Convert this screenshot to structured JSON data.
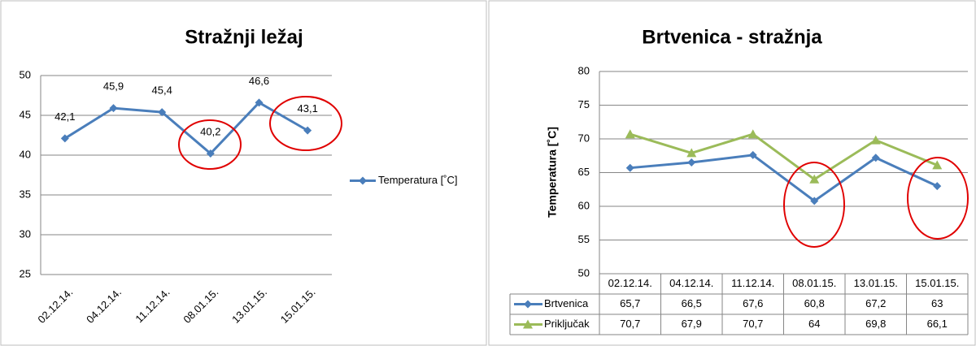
{
  "chart_data": [
    {
      "type": "line",
      "title": "Stražnji ležaj",
      "categories": [
        "02.12.14.",
        "04.12.14.",
        "11.12.14.",
        "08.01.15.",
        "13.01.15.",
        "15.01.15."
      ],
      "series": [
        {
          "name": "Temperatura [˚C]",
          "color": "#4a7ebb",
          "values": [
            42.1,
            45.9,
            45.4,
            40.2,
            46.6,
            43.1
          ],
          "value_labels": [
            "42,1",
            "45,9",
            "45,4",
            "40,2",
            "46,6",
            "43,1"
          ]
        }
      ],
      "ylim": [
        25,
        50
      ],
      "yticks": [
        25,
        30,
        35,
        40,
        45,
        50
      ],
      "grid": true,
      "legend": "right"
    },
    {
      "type": "line",
      "title": "Brtvenica - stražnja",
      "ylabel": "Temperatura [˚C]",
      "categories": [
        "02.12.14.",
        "04.12.14.",
        "11.12.14.",
        "08.01.15.",
        "13.01.15.",
        "15.01.15."
      ],
      "series": [
        {
          "name": "Brtvenica",
          "color": "#4a7ebb",
          "marker": "diamond",
          "values": [
            65.7,
            66.5,
            67.6,
            60.8,
            67.2,
            63
          ],
          "value_labels": [
            "65,7",
            "66,5",
            "67,6",
            "60,8",
            "67,2",
            "63"
          ]
        },
        {
          "name": "Priključak",
          "color": "#9bbb59",
          "marker": "triangle",
          "values": [
            70.7,
            67.9,
            70.7,
            64,
            69.8,
            66.1
          ],
          "value_labels": [
            "70,7",
            "67,9",
            "70,7",
            "64",
            "69,8",
            "66,1"
          ]
        }
      ],
      "ylim": [
        50,
        80
      ],
      "yticks": [
        50,
        55,
        60,
        65,
        70,
        75,
        80
      ],
      "grid": true,
      "data_table": true
    }
  ]
}
